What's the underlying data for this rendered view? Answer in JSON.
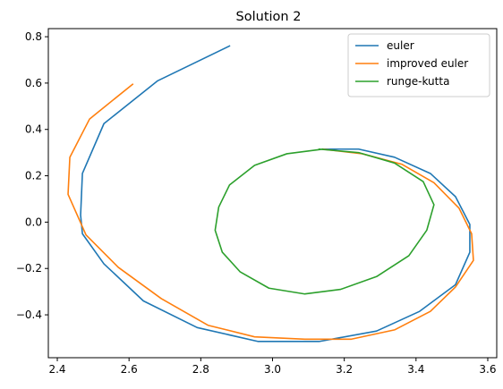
{
  "chart_data": {
    "type": "line",
    "title": "Solution 2",
    "xlabel": "",
    "ylabel": "",
    "xlim": [
      2.375,
      3.625
    ],
    "ylim": [
      -0.585,
      0.835
    ],
    "xticks": [
      2.4,
      2.6,
      2.8,
      3.0,
      3.2,
      3.4,
      3.6
    ],
    "xtick_labels": [
      "2.4",
      "2.6",
      "2.8",
      "3.0",
      "3.2",
      "3.4",
      "3.6"
    ],
    "yticks": [
      -0.4,
      -0.2,
      0.0,
      0.2,
      0.4,
      0.6,
      0.8
    ],
    "ytick_labels": [
      "−0.4",
      "−0.2",
      "0.0",
      "0.2",
      "0.4",
      "0.6",
      "0.8"
    ],
    "grid": false,
    "legend_position": "upper-right",
    "series": [
      {
        "name": "euler",
        "color": "#1f77b4",
        "x": [
          3.14,
          3.24,
          3.34,
          3.44,
          3.51,
          3.55,
          3.55,
          3.51,
          3.41,
          3.29,
          3.13,
          2.96,
          2.79,
          2.64,
          2.53,
          2.47,
          2.465,
          2.47,
          2.53,
          2.68,
          2.88
        ],
        "y": [
          0.315,
          0.315,
          0.28,
          0.21,
          0.11,
          -0.01,
          -0.13,
          -0.27,
          -0.385,
          -0.47,
          -0.515,
          -0.515,
          -0.455,
          -0.34,
          -0.18,
          -0.05,
          0.03,
          0.21,
          0.425,
          0.61,
          0.76
        ]
      },
      {
        "name": "improved euler",
        "color": "#ff7f0e",
        "x": [
          3.14,
          3.25,
          3.36,
          3.45,
          3.52,
          3.555,
          3.56,
          3.51,
          3.44,
          3.34,
          3.22,
          3.09,
          2.95,
          2.82,
          2.69,
          2.57,
          2.48,
          2.43,
          2.435,
          2.49,
          2.61
        ],
        "y": [
          0.315,
          0.295,
          0.25,
          0.17,
          0.06,
          -0.05,
          -0.165,
          -0.28,
          -0.385,
          -0.465,
          -0.505,
          -0.505,
          -0.495,
          -0.445,
          -0.33,
          -0.195,
          -0.055,
          0.12,
          0.28,
          0.445,
          0.595
        ]
      },
      {
        "name": "runge-kutta",
        "color": "#2ca02c",
        "x": [
          3.13,
          3.24,
          3.34,
          3.42,
          3.45,
          3.43,
          3.38,
          3.29,
          3.19,
          3.09,
          2.99,
          2.91,
          2.86,
          2.84,
          2.85,
          2.88,
          2.95,
          3.04,
          3.14
        ],
        "y": [
          0.315,
          0.3,
          0.255,
          0.175,
          0.075,
          -0.035,
          -0.145,
          -0.235,
          -0.29,
          -0.31,
          -0.285,
          -0.215,
          -0.13,
          -0.035,
          0.065,
          0.16,
          0.245,
          0.295,
          0.315
        ]
      }
    ]
  }
}
